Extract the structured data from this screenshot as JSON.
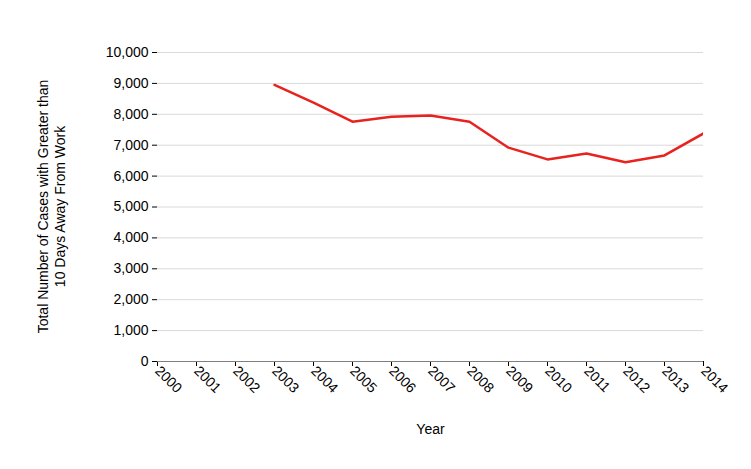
{
  "chart_data": {
    "type": "line",
    "x_label": "Year",
    "y_label": "Total Number of Cases with Greater than 10 Days Away From Work",
    "x": [
      2003,
      2004,
      2005,
      2006,
      2007,
      2008,
      2009,
      2010,
      2011,
      2012,
      2013,
      2014
    ],
    "values": [
      8950,
      8380,
      7760,
      7920,
      7960,
      7760,
      6920,
      6540,
      6730,
      6450,
      6670,
      7380
    ],
    "color": "#e8231f",
    "xlim": [
      2000,
      2014
    ],
    "xticks": [
      2000,
      2001,
      2002,
      2003,
      2004,
      2005,
      2006,
      2007,
      2008,
      2009,
      2010,
      2011,
      2012,
      2013,
      2014
    ],
    "ylim": [
      0,
      10000
    ],
    "yticks": [
      0,
      {
        "value": 1000,
        "label": "1,000"
      },
      {
        "value": 2000,
        "label": "2,000"
      },
      {
        "value": 3000,
        "label": "3,000"
      },
      {
        "value": 4000,
        "label": "4,000"
      },
      {
        "value": 5000,
        "label": "5,000"
      },
      {
        "value": 6000,
        "label": "6,000"
      },
      {
        "value": 7000,
        "label": "7,000"
      },
      {
        "value": 8000,
        "label": "8,000"
      },
      {
        "value": 9000,
        "label": "9,000"
      },
      {
        "value": 10000,
        "label": "10,000"
      }
    ],
    "grid": true
  }
}
